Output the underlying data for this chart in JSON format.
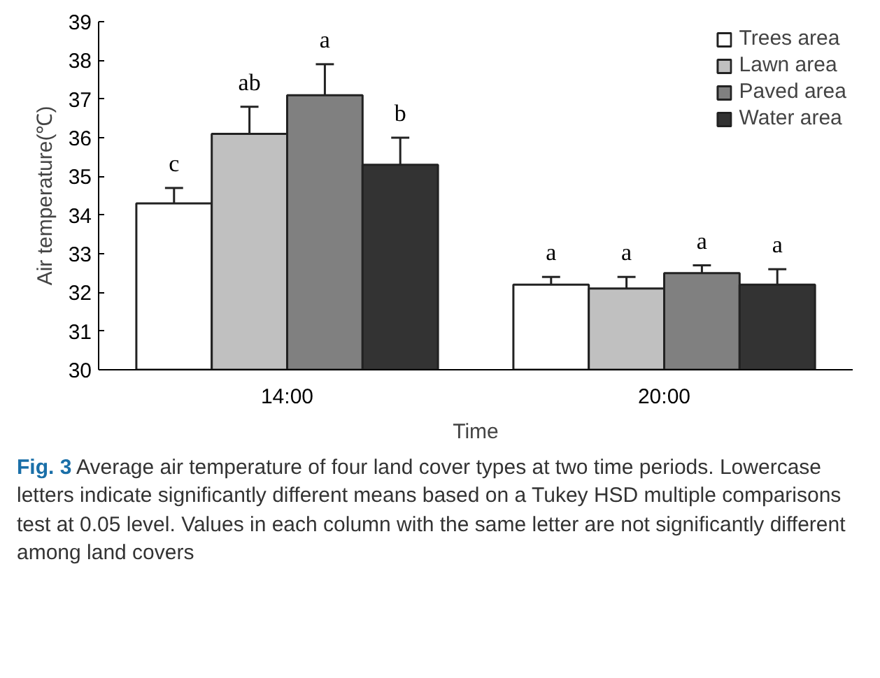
{
  "chart_data": {
    "type": "bar",
    "xlabel": "Time",
    "ylabel": "Air temperature(℃)",
    "categories": [
      "14:00",
      "20:00"
    ],
    "series": [
      {
        "name": "Trees area",
        "color": "#ffffff",
        "values": [
          34.3,
          32.2
        ],
        "errors": [
          0.4,
          0.2
        ],
        "value_labels": [
          "c",
          "a"
        ]
      },
      {
        "name": "Lawn area",
        "color": "#c0c0c0",
        "values": [
          36.1,
          32.1
        ],
        "errors": [
          0.7,
          0.3
        ],
        "value_labels": [
          "ab",
          "a"
        ]
      },
      {
        "name": "Paved area",
        "color": "#808080",
        "values": [
          37.1,
          32.5
        ],
        "errors": [
          0.8,
          0.2
        ],
        "value_labels": [
          "a",
          "a"
        ]
      },
      {
        "name": "Water area",
        "color": "#333333",
        "values": [
          35.3,
          32.2
        ],
        "errors": [
          0.7,
          0.4
        ],
        "value_labels": [
          "b",
          "a"
        ]
      }
    ],
    "ylim": [
      30,
      39
    ],
    "yticks": [
      30,
      31,
      32,
      33,
      34,
      35,
      36,
      37,
      38,
      39
    ],
    "grid": false,
    "legend": "top right",
    "annotations": [
      "Fig. 3 Average air temperature of four land cover types at two time periods. Lowercase letters indicate significantly different means based on a Tukey HSD multiple comparisons test at 0.05 level. Values in each column with the same letter are not significantly different among land covers"
    ]
  }
}
